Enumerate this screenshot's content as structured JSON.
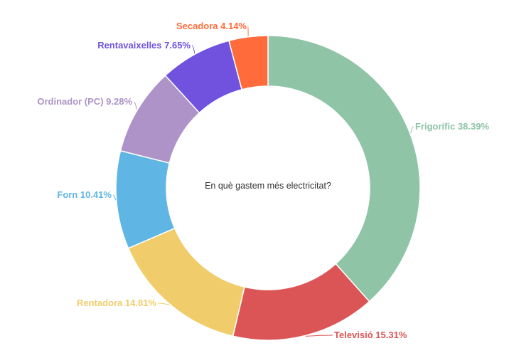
{
  "chart_data": {
    "type": "pie",
    "variant": "donut",
    "center_text": "En què gastem més electricitat?",
    "start_angle_deg": 0,
    "direction": "clockwise",
    "slices": [
      {
        "label": "Frigorífic",
        "value": 38.39,
        "value_text": "38.39%",
        "color": "#8fc4a7"
      },
      {
        "label": "Televisió",
        "value": 15.31,
        "value_text": "15.31%",
        "color": "#dc5556"
      },
      {
        "label": "Rentadora",
        "value": 14.81,
        "value_text": "14.81%",
        "color": "#f0cc6b"
      },
      {
        "label": "Forn",
        "value": 10.41,
        "value_text": "10.41%",
        "color": "#5fb6e5"
      },
      {
        "label": "Ordinador (PC)",
        "value": 9.28,
        "value_text": "9.28%",
        "color": "#ad93c8"
      },
      {
        "label": "Rentavaixelles",
        "value": 7.65,
        "value_text": "7.65%",
        "color": "#7052df"
      },
      {
        "label": "Secadora",
        "value": 4.14,
        "value_text": "4.14%",
        "color": "#ff6b3b"
      }
    ]
  }
}
